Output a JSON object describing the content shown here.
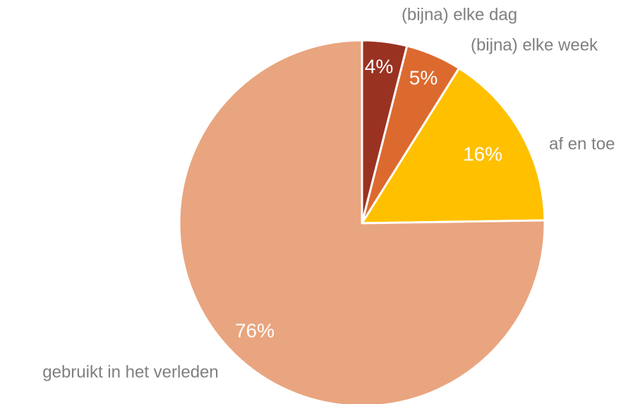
{
  "chart_data": {
    "type": "pie",
    "categories": [
      "(bijna) elke dag",
      "(bijna) elke week",
      "af en toe",
      "gebruikt in het verleden"
    ],
    "values": [
      4,
      5,
      16,
      76
    ],
    "value_labels": [
      "4%",
      "5%",
      "16%",
      "76%"
    ],
    "colors": [
      "#9a3222",
      "#dc6a2f",
      "#ffc000",
      "#e9a57f"
    ]
  }
}
